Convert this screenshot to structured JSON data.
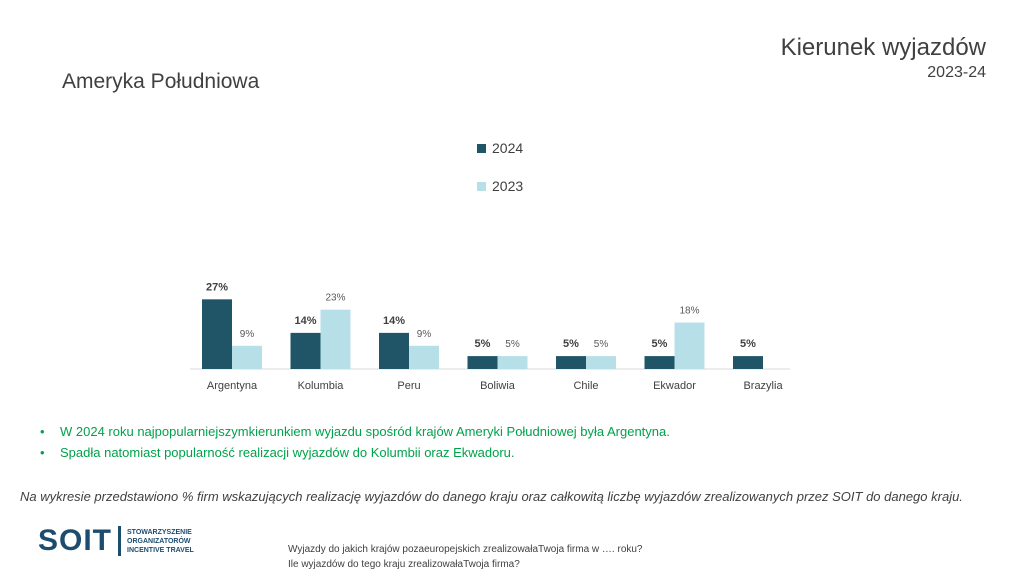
{
  "header": {
    "title": "Kierunek wyjazdów",
    "subtitle": "2023-24",
    "region": "Ameryka Południowa"
  },
  "legend": [
    {
      "label": "2024",
      "color": "#1f5566"
    },
    {
      "label": "2023",
      "color": "#b7dfe8"
    }
  ],
  "chart_data": {
    "type": "bar",
    "categories": [
      "Argentyna",
      "Kolumbia",
      "Peru",
      "Boliwia",
      "Chile",
      "Ekwador",
      "Brazylia"
    ],
    "series": [
      {
        "name": "2024",
        "color": "#1f5566",
        "values": [
          27,
          14,
          14,
          5,
          5,
          5,
          5
        ],
        "labels": [
          "27%",
          "14%",
          "14%",
          "5%",
          "5%",
          "5%",
          "5%"
        ]
      },
      {
        "name": "2023",
        "color": "#b7dfe8",
        "values": [
          9,
          23,
          9,
          5,
          5,
          18,
          null
        ],
        "labels": [
          "9%",
          "23%",
          "9%",
          "5%",
          "5%",
          "18%",
          ""
        ]
      }
    ],
    "value_unit": "%",
    "grid": false,
    "legend_position": "top-center"
  },
  "bullets": [
    "W 2024 roku najpopularniejszymkierunkiem wyjazdu spośród krajów Ameryki Południowej była Argentyna.",
    "Spadła natomiast popularność realizacji wyjazdów do Kolumbii oraz Ekwadoru."
  ],
  "bullet_symbol": "•",
  "note": "Na wykresie przedstawiono % firm wskazujących realizację wyjazdów do danego kraju oraz całkowitą liczbę wyjazdów zrealizowanych przez SOIT do danego kraju.",
  "logo": {
    "text": "SOIT",
    "line1": "STOWARZYSZENIE",
    "line2": "ORGANIZATORÓW",
    "line3": "INCENTIVE TRAVEL"
  },
  "question": {
    "line1": "Wyjazdy do jakich krajów pozaeuropejskich zrealizowałaTwoja firma w …. roku?",
    "line2": "Ile wyjazdów do tego kraju zrealizowałaTwoja firma?"
  }
}
